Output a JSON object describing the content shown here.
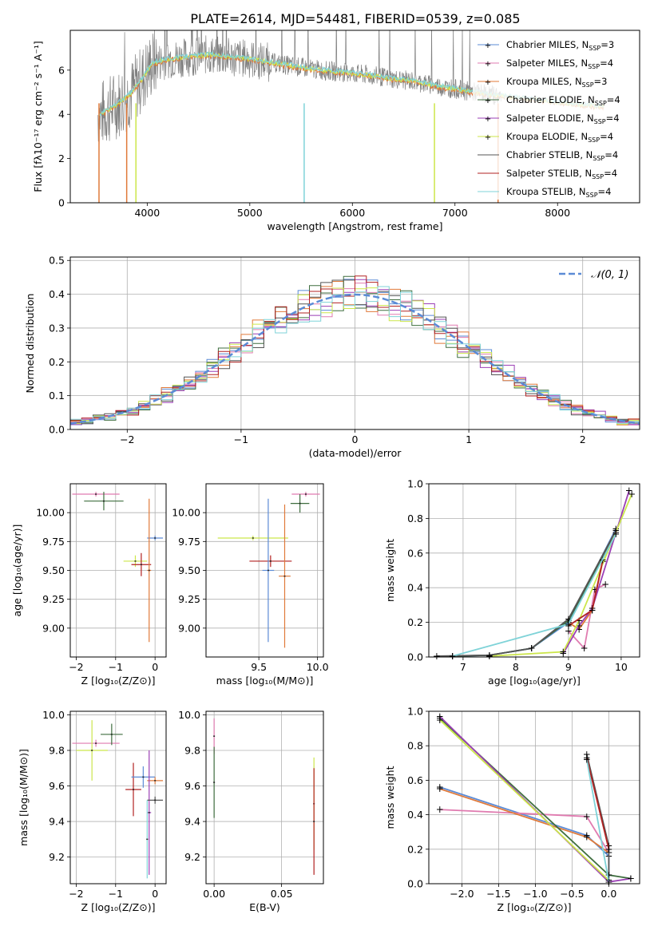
{
  "title": "PLATE=2614, MJD=54481, FIBERID=0539, z=0.085",
  "colors": {
    "chabrier_miles": "#5b8bd6",
    "salpeter_miles": "#e07bb0",
    "kroupa_miles": "#e07a3a",
    "chabrier_elodie": "#3f6e3f",
    "salpeter_elodie": "#9b3fb5",
    "kroupa_elodie": "#cce64a",
    "chabrier_stelib": "#555555",
    "salpeter_stelib": "#b22222",
    "kroupa_stelib": "#7fd3d8",
    "data": "#808080",
    "normal": "#5b8bd6"
  },
  "chart_data": [
    {
      "id": "spectrum",
      "type": "line",
      "title": "PLATE=2614, MJD=54481, FIBERID=0539, z=0.085",
      "xlabel": "wavelength [Angstrom, rest frame]",
      "ylabel": "Flux [fλ10⁻¹⁷ erg cm⁻² s⁻¹ A⁻¹]",
      "xlim": [
        3250,
        8800
      ],
      "ylim": [
        0,
        7.8
      ],
      "xticks": [
        4000,
        5000,
        6000,
        7000,
        8000
      ],
      "yticks": [
        0,
        2,
        4,
        6
      ],
      "legend_position": "top-right",
      "legend": [
        "Chabrier MILES, N_SSP=3",
        "Salpeter MILES, N_SSP=4",
        "Kroupa MILES, N_SSP=3",
        "Chabrier ELODIE, N_SSP=4",
        "Salpeter ELODIE, N_SSP=4",
        "Kroupa ELODIE, N_SSP=4",
        "Chabrier STELIB, N_SSP=4",
        "Salpeter STELIB, N_SSP=4",
        "Kroupa STELIB, N_SSP=4"
      ],
      "continuum": {
        "x": [
          3550,
          3650,
          3750,
          3850,
          3950,
          4050,
          4200,
          4400,
          4600,
          4800,
          5000,
          5200,
          5400,
          5600,
          5800,
          6000,
          6200,
          6400,
          6600,
          6800,
          7000,
          7200,
          7400,
          7600,
          7800,
          8000,
          8200,
          8450
        ],
        "y": [
          4.0,
          4.3,
          4.6,
          5.0,
          5.6,
          6.3,
          6.5,
          6.6,
          6.7,
          6.6,
          6.5,
          6.35,
          6.2,
          6.05,
          5.95,
          5.85,
          5.75,
          5.6,
          5.5,
          5.3,
          5.15,
          5.0,
          4.85,
          4.75,
          4.65,
          4.55,
          4.45,
          4.35
        ]
      }
    },
    {
      "id": "residuals",
      "type": "histogram",
      "xlabel": "(data-model)/error",
      "ylabel": "Normed distribution",
      "xlim": [
        -2.5,
        2.5
      ],
      "ylim": [
        0,
        0.51
      ],
      "xticks": [
        -2,
        -1,
        0,
        1,
        2
      ],
      "yticks": [
        0.0,
        0.1,
        0.2,
        0.3,
        0.4,
        0.5
      ],
      "bin_width": 0.1,
      "legend_position": "top-right",
      "legend": [
        "𝒩(0, 1)"
      ]
    },
    {
      "id": "age_vs_z",
      "type": "errorbar",
      "xlabel": "Z [log₁₀(Z/Z⊙)]",
      "ylabel": "age  [log₁₀(age/yr)]",
      "xlim": [
        -2.15,
        0.28
      ],
      "ylim": [
        8.75,
        10.25
      ],
      "xticks": [
        -2,
        -1,
        0
      ],
      "yticks": [
        9.0,
        9.25,
        9.5,
        9.75,
        10.0
      ],
      "points": [
        {
          "x": -1.5,
          "y": 10.16,
          "xerr": 0.6,
          "yerr": 0.02
        },
        {
          "x": -1.3,
          "y": 10.1,
          "xerr": 0.5,
          "yerr": 0.08
        },
        {
          "x": -0.5,
          "y": 9.58,
          "xerr": 0.3,
          "yerr": 0.05
        },
        {
          "x": -0.35,
          "y": 9.55,
          "xerr": 0.25,
          "yerr": 0.1
        },
        {
          "x": 0.0,
          "y": 9.78,
          "xerr": 0.2,
          "yerr": 0.02
        },
        {
          "x": -0.15,
          "y": 9.5,
          "xerr": 0.05,
          "yerr": 0.62
        }
      ]
    },
    {
      "id": "age_vs_mass",
      "type": "errorbar",
      "xlabel": "mass [log₁₀(M/M⊙)]",
      "ylabel": "",
      "xlim": [
        9.05,
        10.05
      ],
      "ylim": [
        8.75,
        10.25
      ],
      "xticks": [
        9.5,
        10.0
      ],
      "yticks": [
        9.0,
        9.25,
        9.5,
        9.75,
        10.0
      ],
      "points": [
        {
          "x": 9.9,
          "y": 10.16,
          "xerr": 0.12,
          "yerr": 0.02
        },
        {
          "x": 9.85,
          "y": 10.08,
          "xerr": 0.08,
          "yerr": 0.08
        },
        {
          "x": 9.45,
          "y": 9.78,
          "xerr": 0.3,
          "yerr": 0.02
        },
        {
          "x": 9.6,
          "y": 9.58,
          "xerr": 0.18,
          "yerr": 0.05
        },
        {
          "x": 9.58,
          "y": 9.5,
          "xerr": 0.05,
          "yerr": 0.62
        },
        {
          "x": 9.72,
          "y": 9.45,
          "xerr": 0.05,
          "yerr": 0.62
        }
      ]
    },
    {
      "id": "weight_vs_age",
      "type": "line",
      "xlabel": "age  [log₁₀(age/yr)]",
      "ylabel": "mass weight",
      "xlim": [
        6.35,
        10.35
      ],
      "ylim": [
        0,
        1
      ],
      "xticks": [
        7,
        8,
        9,
        10
      ],
      "yticks": [
        0.0,
        0.2,
        0.4,
        0.6,
        0.8,
        1.0
      ],
      "series": [
        {
          "color": "chabrier_miles",
          "x": [
            6.8,
            7.5,
            8.3,
            9.0,
            9.9
          ],
          "y": [
            0.005,
            0.01,
            0.05,
            0.2,
            0.74
          ]
        },
        {
          "color": "salpeter_miles",
          "x": [
            9.0,
            9.3,
            9.5,
            9.7
          ],
          "y": [
            0.15,
            0.05,
            0.39,
            0.42
          ]
        },
        {
          "color": "kroupa_miles",
          "x": [
            9.0,
            9.2,
            9.45,
            9.65
          ],
          "y": [
            0.2,
            0.16,
            0.27,
            0.55
          ]
        },
        {
          "color": "chabrier_elodie",
          "x": [
            6.8,
            7.5,
            8.3,
            9.0,
            9.9
          ],
          "y": [
            0.005,
            0.01,
            0.05,
            0.21,
            0.72
          ]
        },
        {
          "color": "salpeter_elodie",
          "x": [
            8.9,
            9.2,
            9.45,
            10.15
          ],
          "y": [
            0.02,
            0.18,
            0.28,
            0.96
          ]
        },
        {
          "color": "kroupa_elodie",
          "x": [
            7.5,
            8.9,
            9.2,
            10.2
          ],
          "y": [
            0.005,
            0.03,
            0.21,
            0.94
          ]
        },
        {
          "color": "chabrier_stelib",
          "x": [
            6.5,
            7.5,
            8.3,
            9.0,
            9.9
          ],
          "y": [
            0.005,
            0.01,
            0.05,
            0.22,
            0.73
          ]
        },
        {
          "color": "salpeter_stelib",
          "x": [
            9.0,
            9.45,
            9.65
          ],
          "y": [
            0.18,
            0.27,
            0.56
          ]
        },
        {
          "color": "kroupa_stelib",
          "x": [
            6.8,
            9.0,
            9.9
          ],
          "y": [
            0.005,
            0.19,
            0.71
          ]
        }
      ]
    },
    {
      "id": "mass_vs_z",
      "type": "errorbar",
      "xlabel": "Z [log₁₀(Z/Z⊙)]",
      "ylabel": "mass [log₁₀(M/M⊙)]",
      "xlim": [
        -2.15,
        0.28
      ],
      "ylim": [
        9.05,
        10.02
      ],
      "xticks": [
        -2,
        -1,
        0
      ],
      "yticks": [
        9.2,
        9.4,
        9.6,
        9.8,
        10.0
      ],
      "points": [
        {
          "x": -1.5,
          "y": 9.84,
          "xerr": 0.6,
          "yerr": 0.02
        },
        {
          "x": -1.1,
          "y": 9.89,
          "xerr": 0.28,
          "yerr": 0.06
        },
        {
          "x": -1.6,
          "y": 9.8,
          "xerr": 0.4,
          "yerr": 0.17
        },
        {
          "x": -0.55,
          "y": 9.58,
          "xerr": 0.2,
          "yerr": 0.15
        },
        {
          "x": -0.3,
          "y": 9.65,
          "xerr": 0.3,
          "yerr": 0.06
        },
        {
          "x": 0.0,
          "y": 9.63,
          "xerr": 0.2,
          "yerr": 0.02
        },
        {
          "x": -0.15,
          "y": 9.45,
          "xerr": 0.05,
          "yerr": 0.35
        },
        {
          "x": 0.0,
          "y": 9.52,
          "xerr": 0.2,
          "yerr": 0.02
        },
        {
          "x": -0.2,
          "y": 9.3,
          "xerr": 0.02,
          "yerr": 0.22
        }
      ]
    },
    {
      "id": "mass_vs_ebv",
      "type": "errorbar",
      "xlabel": "E(B-V)",
      "ylabel": "",
      "xlim": [
        -0.006,
        0.081
      ],
      "ylim": [
        9.05,
        10.02
      ],
      "xticks": [
        0.0,
        0.05
      ],
      "yticks": [
        9.2,
        9.4,
        9.6,
        9.8,
        10.0
      ],
      "points": [
        {
          "x": 0.0,
          "y": 9.88,
          "xerr": 0.0,
          "yerr": 0.1
        },
        {
          "x": 0.0,
          "y": 9.62,
          "xerr": 0.0,
          "yerr": 0.2
        },
        {
          "x": 0.074,
          "y": 9.5,
          "xerr": 0.0,
          "yerr": 0.26
        },
        {
          "x": 0.074,
          "y": 9.4,
          "xerr": 0.0,
          "yerr": 0.3
        }
      ]
    },
    {
      "id": "weight_vs_z",
      "type": "line",
      "xlabel": "Z [log₁₀(Z/Z⊙)]",
      "ylabel": "mass weight",
      "xlim": [
        -2.45,
        0.42
      ],
      "ylim": [
        0,
        1
      ],
      "xticks": [
        -2.0,
        -1.5,
        -1.0,
        -0.5,
        0.0
      ],
      "yticks": [
        0.0,
        0.2,
        0.4,
        0.6,
        0.8,
        1.0
      ],
      "series": [
        {
          "color": "chabrier_miles",
          "x": [
            -2.3,
            -0.3,
            0.0,
            0.0
          ],
          "y": [
            0.56,
            0.28,
            0.16,
            0.01
          ]
        },
        {
          "color": "salpeter_miles",
          "x": [
            -2.3,
            -0.3,
            0.0
          ],
          "y": [
            0.43,
            0.39,
            0.18
          ]
        },
        {
          "color": "kroupa_miles",
          "x": [
            -2.3,
            -0.3,
            0.0
          ],
          "y": [
            0.55,
            0.27,
            0.18
          ]
        },
        {
          "color": "chabrier_elodie",
          "x": [
            -2.3,
            0.0,
            0.3
          ],
          "y": [
            0.96,
            0.05,
            0.03
          ]
        },
        {
          "color": "salpeter_elodie",
          "x": [
            -2.3,
            0.0,
            0.3
          ],
          "y": [
            0.97,
            0.01,
            0.03
          ]
        },
        {
          "color": "kroupa_elodie",
          "x": [
            -2.3,
            0.0
          ],
          "y": [
            0.95,
            0.02
          ]
        },
        {
          "color": "chabrier_stelib",
          "x": [
            -0.3,
            0.0,
            0.0
          ],
          "y": [
            0.75,
            0.22,
            0.05
          ]
        },
        {
          "color": "salpeter_stelib",
          "x": [
            -0.3,
            0.0
          ],
          "y": [
            0.73,
            0.2
          ]
        },
        {
          "color": "kroupa_stelib",
          "x": [
            -0.3,
            0.0
          ],
          "y": [
            0.72,
            0.01
          ]
        }
      ]
    }
  ]
}
